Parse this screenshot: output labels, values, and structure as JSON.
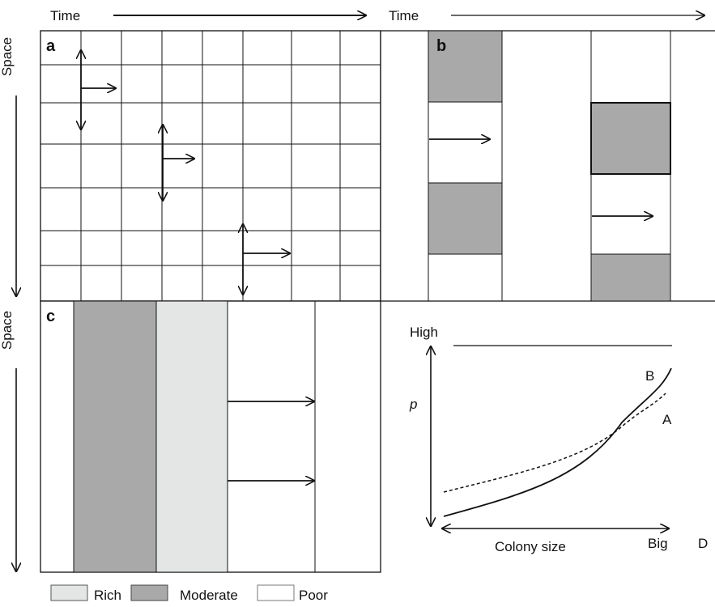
{
  "axes": {
    "time_label_left": "Time",
    "time_label_right": "Time",
    "space_label_top": "Space",
    "space_label_bottom": "Space"
  },
  "panels": {
    "a": {
      "letter": "a"
    },
    "b": {
      "letter": "b"
    },
    "c": {
      "letter": "c"
    },
    "d": {
      "y_high_label": "High",
      "y_var_label": "p",
      "x_label": "Colony size",
      "x_big_label": "Big",
      "letter": "D",
      "curve_b_label": "B",
      "curve_a_label": "A"
    }
  },
  "legend": {
    "items": [
      {
        "label": "Rich",
        "color": "#e4e6e5"
      },
      {
        "label": "Moderate",
        "color": "#a9a9a9"
      },
      {
        "label": "Poor",
        "color": "#ffffff"
      }
    ]
  },
  "colors": {
    "moderate": "#a9a9a9",
    "rich": "#e4e6e5",
    "poor": "#ffffff",
    "line": "#111111"
  }
}
